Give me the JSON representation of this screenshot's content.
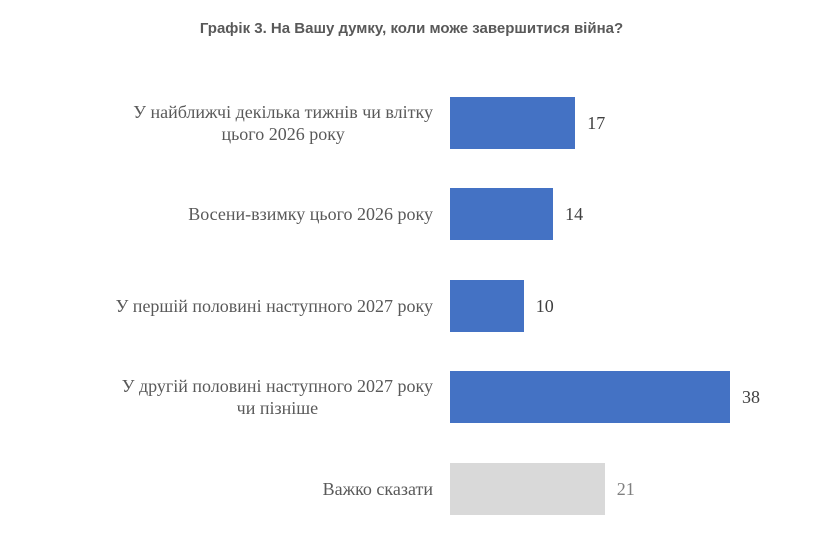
{
  "chart_data": {
    "type": "bar",
    "orientation": "horizontal",
    "title": "Графік 3. На Вашу думку, коли може завершитися війна?",
    "categories": [
      "У найближчі декілька тижнів чи влітку цього 2026 року",
      "Восени-взимку цього 2026 року",
      "У першій половині наступного 2027 року",
      "У другій половині наступного 2027 року чи пізніше",
      "Важко сказати"
    ],
    "values": [
      17,
      14,
      10,
      38,
      21
    ],
    "colors": [
      "#4472c4",
      "#4472c4",
      "#4472c4",
      "#4472c4",
      "#d9d9d9"
    ],
    "xlabel": "",
    "ylabel": "",
    "grid": false,
    "legend": null,
    "data_labels": true
  },
  "rows": [
    {
      "label_lines": [
        "У найближчі декілька тижнів чи влітку",
        "цього 2026 року"
      ],
      "value": "17",
      "color": "#4472c4"
    },
    {
      "label_lines": [
        "Восени-взимку цього 2026 року"
      ],
      "value": "14",
      "color": "#4472c4"
    },
    {
      "label_lines": [
        "У першій половині наступного 2027 року"
      ],
      "value": "10",
      "color": "#4472c4"
    },
    {
      "label_lines": [
        "У другій половині наступного 2027 року",
        "чи пізніше"
      ],
      "value": "38",
      "color": "#4472c4"
    },
    {
      "label_lines": [
        "Важко сказати"
      ],
      "value": "21",
      "color": "#d9d9d9"
    }
  ]
}
